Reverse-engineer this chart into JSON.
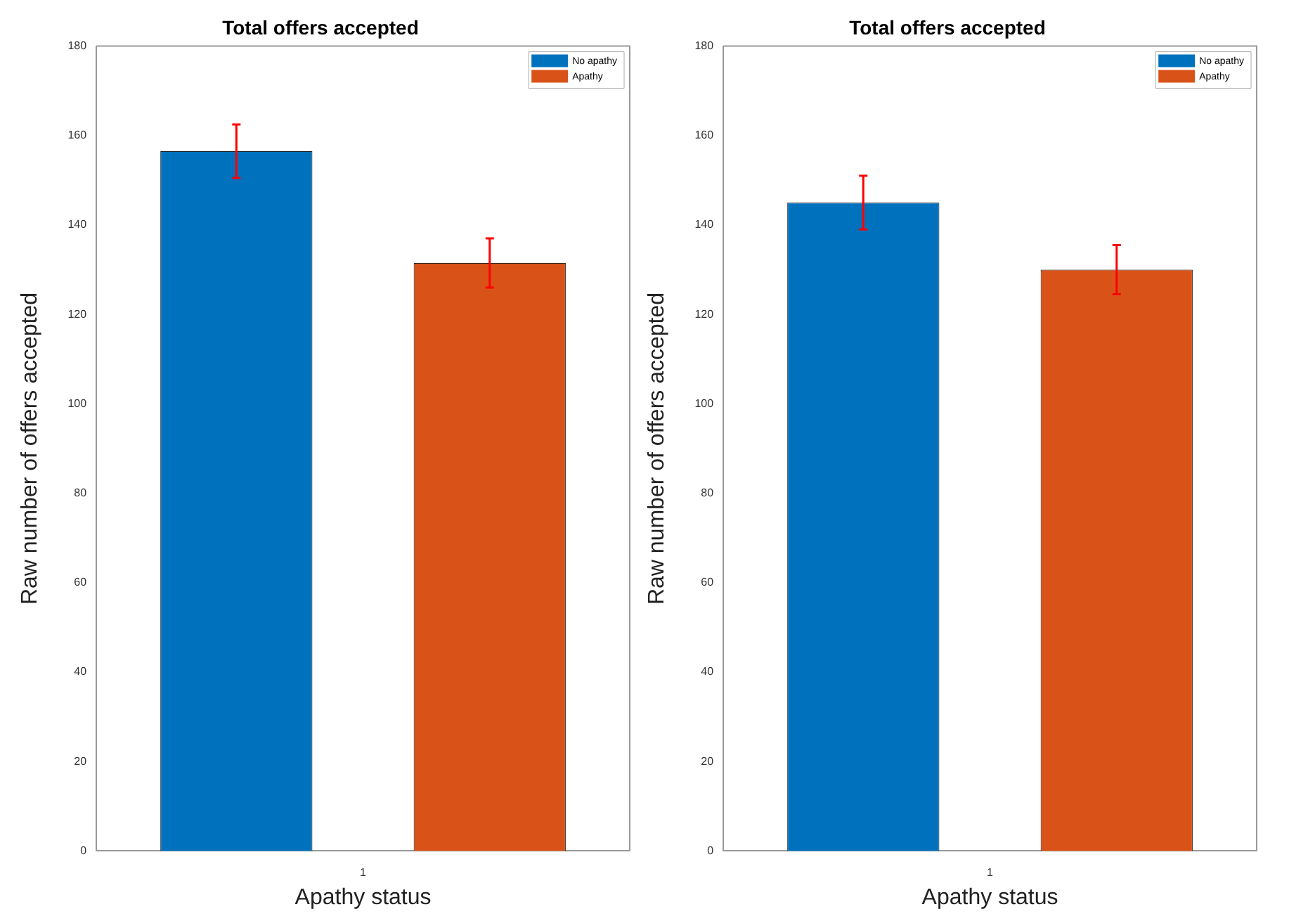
{
  "chart_data": [
    {
      "type": "bar",
      "title": "Total offers accepted",
      "xlabel": "Apathy status",
      "ylabel": "Raw number of offers accepted",
      "categories": [
        "1"
      ],
      "series": [
        {
          "name": "No apathy",
          "color": "#0072bd",
          "values": [
            156.5
          ],
          "errors": [
            6
          ]
        },
        {
          "name": "Apathy",
          "color": "#d95319",
          "values": [
            131.5
          ],
          "errors": [
            5.5
          ]
        }
      ],
      "ylim": [
        0,
        180
      ],
      "yticks": [
        0,
        20,
        40,
        60,
        80,
        100,
        120,
        140,
        160,
        180
      ],
      "grid": false,
      "legend": "top right"
    },
    {
      "type": "bar",
      "title": "Total offers accepted",
      "xlabel": "Apathy status",
      "ylabel": "Raw number of offers accepted",
      "categories": [
        "1"
      ],
      "series": [
        {
          "name": "No apathy",
          "color": "#0072bd",
          "values": [
            145
          ],
          "errors": [
            6
          ]
        },
        {
          "name": "Apathy",
          "color": "#d95319",
          "values": [
            130
          ],
          "errors": [
            5.5
          ]
        }
      ],
      "ylim": [
        0,
        180
      ],
      "yticks": [
        0,
        20,
        40,
        60,
        80,
        100,
        120,
        140,
        160,
        180
      ],
      "grid": false,
      "legend": "top right"
    }
  ]
}
